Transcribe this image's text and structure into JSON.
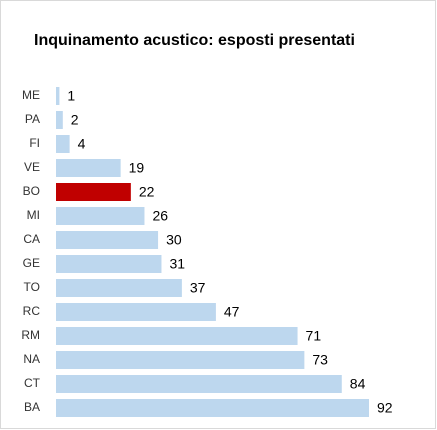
{
  "chart_data": {
    "type": "bar",
    "orientation": "horizontal",
    "title": "Inquinamento acustico: esposti presentati",
    "categories": [
      "ME",
      "PA",
      "FI",
      "VE",
      "BO",
      "MI",
      "CA",
      "GE",
      "TO",
      "RC",
      "RM",
      "NA",
      "CT",
      "BA"
    ],
    "values": [
      1,
      2,
      4,
      19,
      22,
      26,
      30,
      31,
      37,
      47,
      71,
      73,
      84,
      92
    ],
    "colors": [
      "#bdd7ee",
      "#bdd7ee",
      "#bdd7ee",
      "#bdd7ee",
      "#c00000",
      "#bdd7ee",
      "#bdd7ee",
      "#bdd7ee",
      "#bdd7ee",
      "#bdd7ee",
      "#bdd7ee",
      "#bdd7ee",
      "#bdd7ee",
      "#bdd7ee"
    ],
    "grid": false
  }
}
